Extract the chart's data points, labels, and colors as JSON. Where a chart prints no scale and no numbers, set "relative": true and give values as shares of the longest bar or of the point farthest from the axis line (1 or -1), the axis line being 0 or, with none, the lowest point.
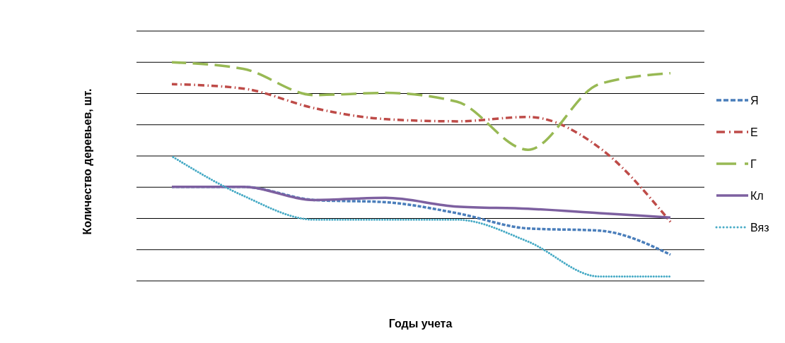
{
  "chart_data": {
    "type": "line",
    "relative": true,
    "xlabel": "Годы учета",
    "ylabel": "Количество деревьев, шт.",
    "categories": [
      null,
      null,
      null,
      null,
      null,
      null,
      null,
      null
    ],
    "grid": "y",
    "legend": "right",
    "series": [
      {
        "name": "Я",
        "color": "#4a7ebb",
        "line_style": "dashed",
        "values": [
          0.43,
          0.43,
          0.37,
          0.36,
          0.31,
          0.24,
          0.23,
          0.12
        ]
      },
      {
        "name": "Е",
        "color": "#be4b48",
        "line_style": "dashdot",
        "values": [
          0.9,
          0.88,
          0.79,
          0.74,
          0.73,
          0.75,
          0.61,
          0.27
        ]
      },
      {
        "name": "Г",
        "color": "#98b954",
        "line_style": "longdash",
        "values": [
          1.0,
          0.97,
          0.85,
          0.86,
          0.82,
          0.6,
          0.9,
          0.95
        ]
      },
      {
        "name": "Кл",
        "color": "#7d60a0",
        "line_style": "solid",
        "values": [
          0.43,
          0.43,
          0.37,
          0.38,
          0.34,
          0.33,
          0.31,
          0.29
        ]
      },
      {
        "name": "Вяз",
        "color": "#46aac5",
        "line_style": "dotted",
        "values": [
          0.57,
          0.39,
          0.28,
          0.28,
          0.28,
          0.18,
          0.02,
          0.02
        ]
      }
    ]
  }
}
